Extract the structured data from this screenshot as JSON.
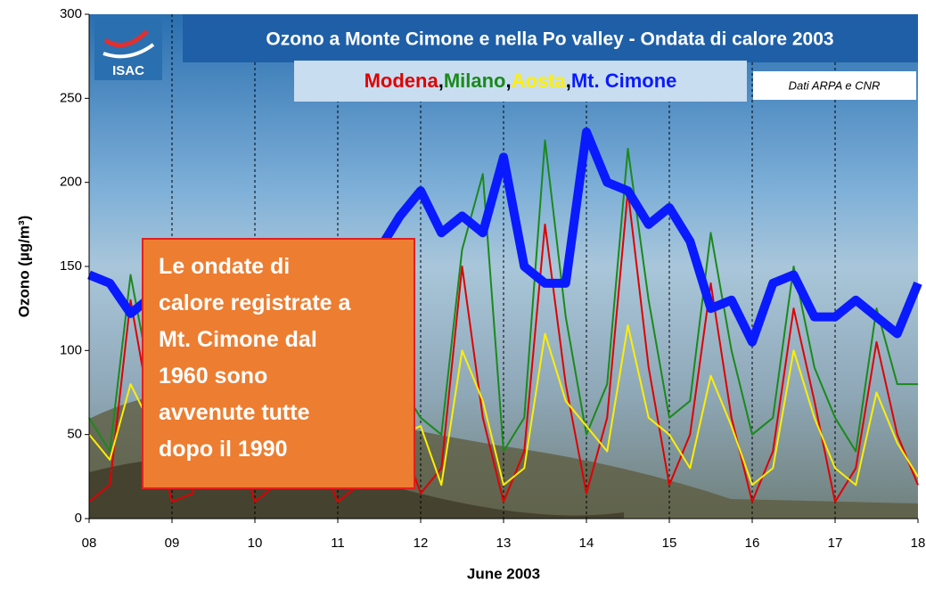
{
  "chart_data": {
    "type": "line",
    "title": "Ozono a Monte Cimone e nella Po valley - Ondata di calore 2003",
    "source_note": "Dati ARPA e CNR",
    "logo_text": "ISAC",
    "legend_separator": ",",
    "y_label": "Ozono (µg/m³)",
    "x_label": "June 2003",
    "annotation": [
      "Le ondate di",
      "calore registrate a",
      "Mt. Cimone dal",
      "1960  sono",
      "avvenute tutte",
      "dopo il 1990"
    ],
    "x": [
      8,
      8.25,
      8.5,
      8.75,
      9,
      9.25,
      9.5,
      9.75,
      10,
      10.25,
      10.5,
      10.75,
      11,
      11.25,
      11.5,
      11.75,
      12,
      12.25,
      12.5,
      12.75,
      13,
      13.25,
      13.5,
      13.75,
      14,
      14.25,
      14.5,
      14.75,
      15,
      15.25,
      15.5,
      15.75,
      16,
      16.25,
      16.5,
      16.75,
      17,
      17.25,
      17.5,
      17.75,
      18
    ],
    "xlim": [
      8,
      18
    ],
    "xticks": [
      {
        "value": 8,
        "label": "08"
      },
      {
        "value": 9,
        "label": "09"
      },
      10,
      11,
      12,
      13,
      14,
      15,
      16,
      17,
      18
    ],
    "ylim": [
      0,
      300
    ],
    "yticks": [
      0,
      50,
      100,
      150,
      200,
      250,
      300
    ],
    "grid": true,
    "series": [
      {
        "name": "Milano",
        "color": "#1a8a1a",
        "width": 2,
        "values": [
          60,
          40,
          145,
          80,
          50,
          30,
          130,
          80,
          40,
          30,
          120,
          70,
          50,
          40,
          130,
          80,
          60,
          50,
          160,
          205,
          40,
          60,
          225,
          120,
          50,
          80,
          220,
          130,
          60,
          70,
          170,
          100,
          50,
          60,
          150,
          90,
          60,
          40,
          125,
          80,
          80
        ]
      },
      {
        "name": "Modena",
        "color": "#e00000",
        "width": 2,
        "values": [
          10,
          20,
          130,
          60,
          10,
          15,
          120,
          50,
          10,
          20,
          110,
          40,
          10,
          20,
          120,
          50,
          15,
          30,
          150,
          60,
          10,
          40,
          175,
          80,
          15,
          60,
          195,
          90,
          20,
          50,
          140,
          60,
          10,
          40,
          125,
          70,
          10,
          30,
          105,
          50,
          20
        ]
      },
      {
        "name": "Aosta",
        "color": "#ffee00",
        "width": 2,
        "values": [
          50,
          35,
          80,
          55,
          40,
          20,
          70,
          45,
          30,
          20,
          75,
          40,
          35,
          25,
          80,
          50,
          55,
          20,
          100,
          70,
          20,
          30,
          110,
          70,
          55,
          40,
          115,
          60,
          50,
          30,
          85,
          55,
          20,
          30,
          100,
          60,
          30,
          20,
          75,
          45,
          25
        ]
      },
      {
        "name": "Mt. Cimone",
        "color": "#0a1aff",
        "width": 10,
        "values": [
          145,
          140,
          122,
          132,
          135,
          140,
          145,
          140,
          135,
          140,
          145,
          150,
          145,
          150,
          160,
          180,
          195,
          170,
          180,
          170,
          215,
          150,
          140,
          140,
          230,
          200,
          195,
          175,
          185,
          165,
          125,
          130,
          105,
          140,
          145,
          120,
          120,
          130,
          120,
          110,
          140
        ]
      }
    ]
  }
}
